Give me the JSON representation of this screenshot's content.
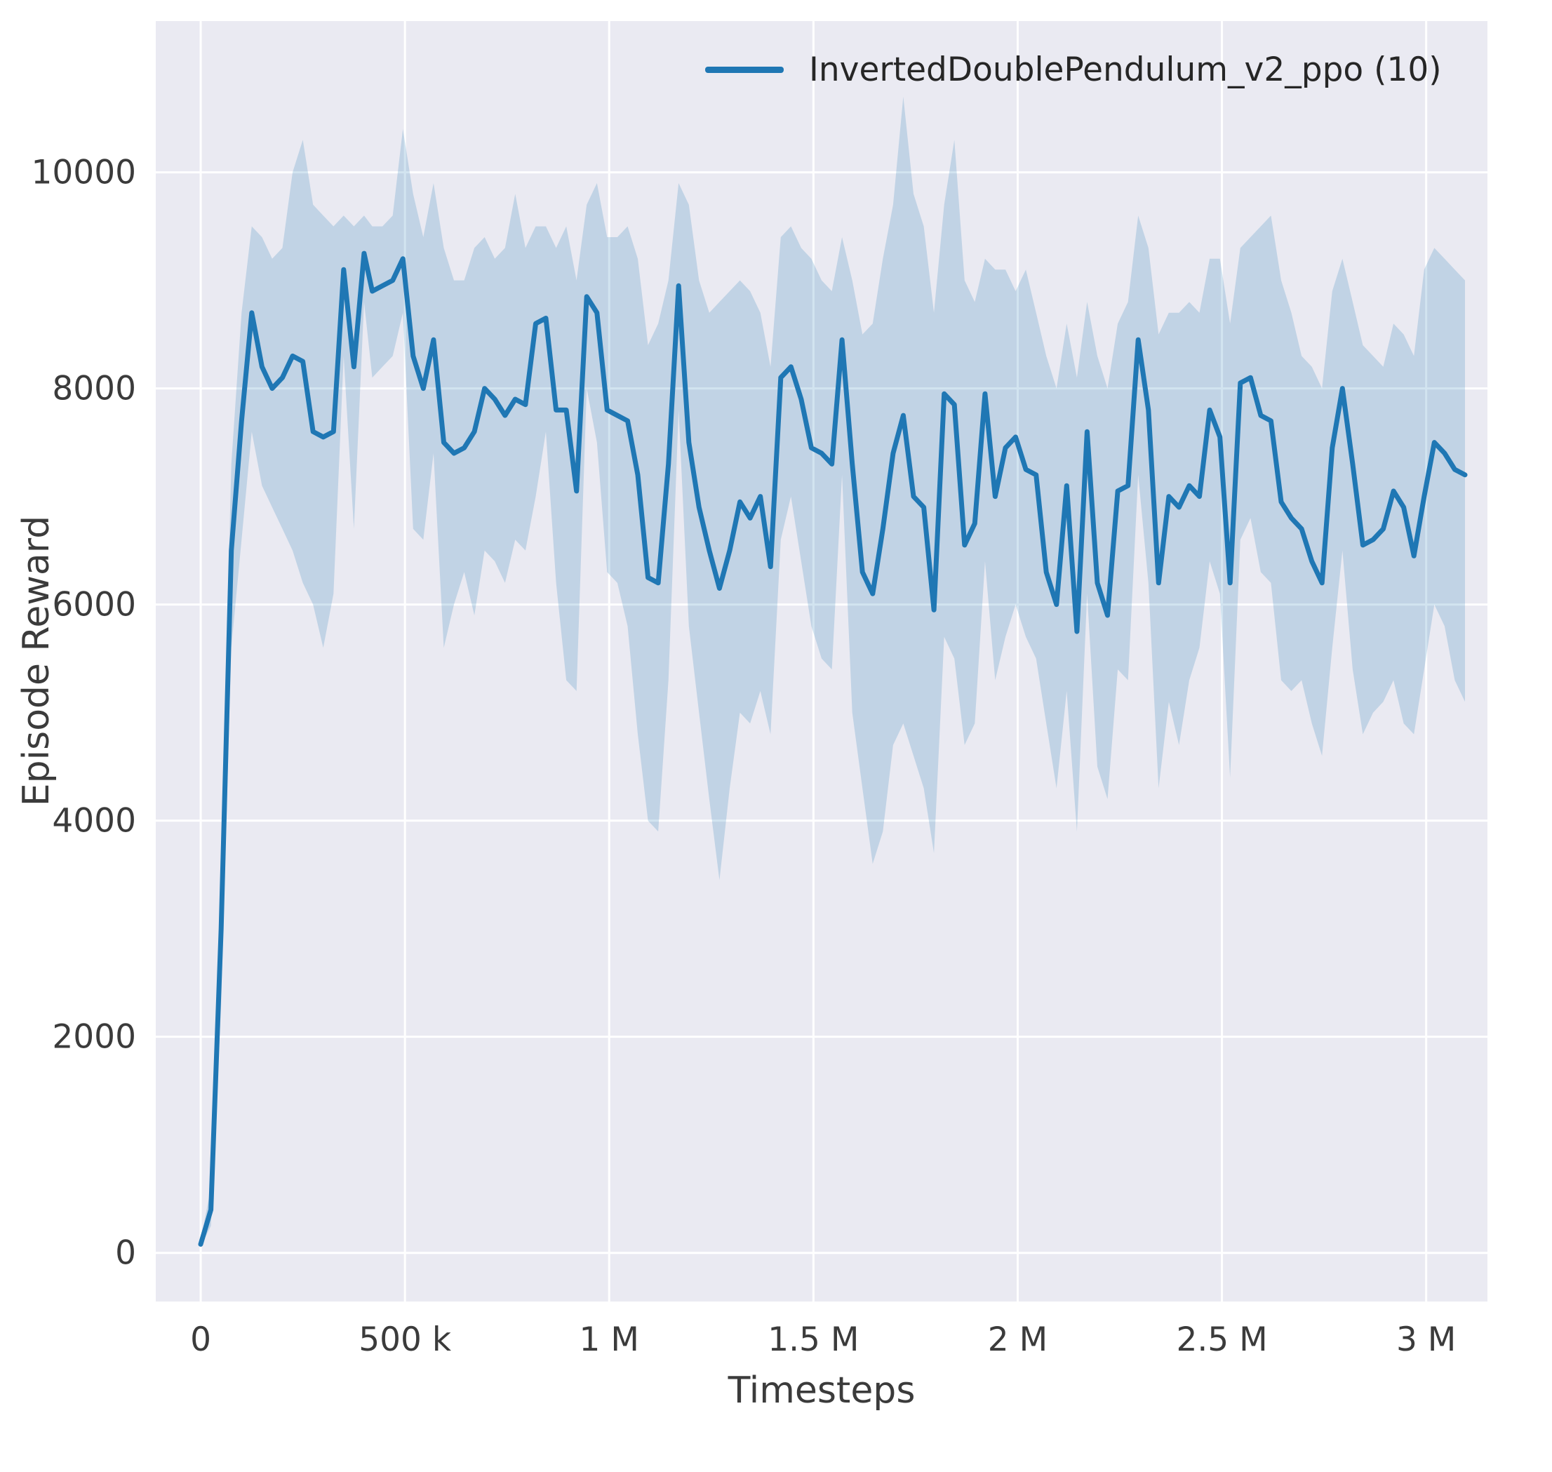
{
  "figure": {
    "background": "#ffffff",
    "axes_background": "#eaeaf2",
    "grid_color": "#ffffff",
    "tick_color": "#3b3b3b",
    "text_color": "#262626"
  },
  "legend": {
    "position": "upper right",
    "entries": [
      {
        "label": "InvertedDoublePendulum_v2_ppo (10)",
        "color": "#1f77b4"
      }
    ]
  },
  "chart_data": {
    "type": "line",
    "title": "",
    "xlabel": "Timesteps",
    "ylabel": "Episode Reward",
    "grid": true,
    "legend_position": "upper right",
    "xlim": [
      -110000,
      3150000
    ],
    "ylim": [
      -450,
      11400
    ],
    "x_ticks": [
      {
        "value": 0,
        "label": "0"
      },
      {
        "value": 500000,
        "label": "500 k"
      },
      {
        "value": 1000000,
        "label": "1 M"
      },
      {
        "value": 1500000,
        "label": "1.5 M"
      },
      {
        "value": 2000000,
        "label": "2 M"
      },
      {
        "value": 2500000,
        "label": "2.5 M"
      },
      {
        "value": 3000000,
        "label": "3 M"
      }
    ],
    "y_ticks": [
      {
        "value": 0,
        "label": "0"
      },
      {
        "value": 2000,
        "label": "2000"
      },
      {
        "value": 4000,
        "label": "4000"
      },
      {
        "value": 6000,
        "label": "6000"
      },
      {
        "value": 8000,
        "label": "8000"
      },
      {
        "value": 10000,
        "label": "10000"
      }
    ],
    "series": [
      {
        "name": "InvertedDoublePendulum_v2_ppo (10)",
        "color": "#1f77b4",
        "band_color": "#1f77b4",
        "band_opacity": 0.2,
        "line_width": 7,
        "x": [
          0,
          25000,
          50000,
          75000,
          100000,
          125000,
          150000,
          175000,
          200000,
          225000,
          250000,
          275000,
          300000,
          325000,
          350000,
          375000,
          400000,
          420000,
          445000,
          470000,
          495000,
          520000,
          545000,
          570000,
          595000,
          620000,
          645000,
          670000,
          695000,
          720000,
          745000,
          770000,
          795000,
          820000,
          845000,
          870000,
          895000,
          920000,
          945000,
          970000,
          995000,
          1020000,
          1045000,
          1070000,
          1095000,
          1120000,
          1145000,
          1170000,
          1195000,
          1220000,
          1245000,
          1270000,
          1295000,
          1320000,
          1345000,
          1370000,
          1395000,
          1420000,
          1445000,
          1470000,
          1495000,
          1520000,
          1545000,
          1570000,
          1595000,
          1620000,
          1645000,
          1670000,
          1695000,
          1720000,
          1745000,
          1770000,
          1795000,
          1820000,
          1845000,
          1870000,
          1895000,
          1920000,
          1945000,
          1970000,
          1995000,
          2020000,
          2045000,
          2070000,
          2095000,
          2120000,
          2145000,
          2170000,
          2195000,
          2220000,
          2245000,
          2270000,
          2295000,
          2320000,
          2345000,
          2370000,
          2395000,
          2420000,
          2445000,
          2470000,
          2495000,
          2520000,
          2545000,
          2570000,
          2595000,
          2620000,
          2645000,
          2670000,
          2695000,
          2720000,
          2745000,
          2770000,
          2795000,
          2820000,
          2845000,
          2870000,
          2895000,
          2920000,
          2945000,
          2970000,
          2995000,
          3020000,
          3045000,
          3070000,
          3095000
        ],
        "mean": [
          80,
          400,
          3000,
          6500,
          7700,
          8700,
          8200,
          8000,
          8100,
          8300,
          8250,
          7600,
          7550,
          7600,
          9100,
          8200,
          9250,
          8900,
          8950,
          9000,
          9200,
          8300,
          8000,
          8450,
          7500,
          7400,
          7450,
          7600,
          8000,
          7900,
          7750,
          7900,
          7850,
          8600,
          8650,
          7800,
          7800,
          7050,
          8850,
          8700,
          7800,
          7750,
          7700,
          7200,
          6250,
          6200,
          7300,
          8950,
          7500,
          6900,
          6500,
          6150,
          6500,
          6950,
          6800,
          7000,
          6350,
          8100,
          8200,
          7900,
          7450,
          7400,
          7300,
          8450,
          7300,
          6300,
          6100,
          6700,
          7400,
          7750,
          7000,
          6900,
          5950,
          7950,
          7850,
          6550,
          6750,
          7950,
          7000,
          7450,
          7550,
          7250,
          7200,
          6300,
          6000,
          7100,
          5750,
          7600,
          6200,
          5900,
          7050,
          7100,
          8450,
          7800,
          6200,
          7000,
          6900,
          7100,
          7000,
          7800,
          7550,
          6200,
          8050,
          8100,
          7750,
          7700,
          6950,
          6800,
          6700,
          6400,
          6200,
          7450,
          8000,
          7300,
          6550,
          6600,
          6700,
          7050,
          6900,
          6450,
          7000,
          7500,
          7400,
          7250,
          7200
        ],
        "lower": [
          60,
          250,
          2300,
          5600,
          6600,
          7600,
          7100,
          6900,
          6700,
          6500,
          6200,
          6000,
          5600,
          6100,
          8300,
          6700,
          8800,
          8100,
          8200,
          8300,
          8700,
          6700,
          6600,
          7400,
          5600,
          6000,
          6300,
          5900,
          6500,
          6400,
          6200,
          6600,
          6500,
          7000,
          7600,
          6200,
          5300,
          5200,
          8000,
          7500,
          6300,
          6200,
          5800,
          4800,
          4000,
          3900,
          5300,
          7800,
          5800,
          5000,
          4200,
          3450,
          4300,
          5000,
          4900,
          5200,
          4800,
          6600,
          7000,
          6400,
          5800,
          5500,
          5400,
          7200,
          5000,
          4300,
          3600,
          3900,
          4700,
          4900,
          4600,
          4300,
          3700,
          5700,
          5500,
          4700,
          4900,
          6400,
          5300,
          5700,
          6000,
          5700,
          5500,
          4900,
          4300,
          5200,
          3900,
          6100,
          4500,
          4200,
          5400,
          5300,
          7200,
          6200,
          4300,
          5100,
          4700,
          5300,
          5600,
          6400,
          6100,
          4400,
          6600,
          6800,
          6300,
          6200,
          5300,
          5200,
          5300,
          4900,
          4600,
          5600,
          6500,
          5400,
          4800,
          5000,
          5100,
          5300,
          4900,
          4800,
          5400,
          6000,
          5800,
          5300,
          5100
        ],
        "upper": [
          120,
          600,
          3700,
          7300,
          8700,
          9500,
          9400,
          9200,
          9300,
          10000,
          10300,
          9700,
          9600,
          9500,
          9600,
          9500,
          9600,
          9500,
          9500,
          9600,
          10400,
          9800,
          9400,
          9900,
          9300,
          9000,
          9000,
          9300,
          9400,
          9200,
          9300,
          9800,
          9300,
          9500,
          9500,
          9300,
          9500,
          9000,
          9700,
          9900,
          9400,
          9400,
          9500,
          9200,
          8400,
          8600,
          9000,
          9900,
          9700,
          9000,
          8700,
          8800,
          8900,
          9000,
          8900,
          8700,
          8200,
          9400,
          9500,
          9300,
          9200,
          9000,
          8900,
          9400,
          9000,
          8500,
          8600,
          9200,
          9700,
          10700,
          9800,
          9500,
          8700,
          9700,
          10300,
          9000,
          8800,
          9200,
          9100,
          9100,
          8900,
          9100,
          8700,
          8300,
          8000,
          8600,
          8100,
          8800,
          8300,
          8000,
          8600,
          8800,
          9600,
          9300,
          8500,
          8700,
          8700,
          8800,
          8700,
          9200,
          9200,
          8600,
          9300,
          9400,
          9500,
          9600,
          9000,
          8700,
          8300,
          8200,
          8000,
          8900,
          9200,
          8800,
          8400,
          8300,
          8200,
          8600,
          8500,
          8300,
          9100,
          9300,
          9200,
          9100,
          9000
        ]
      }
    ]
  }
}
